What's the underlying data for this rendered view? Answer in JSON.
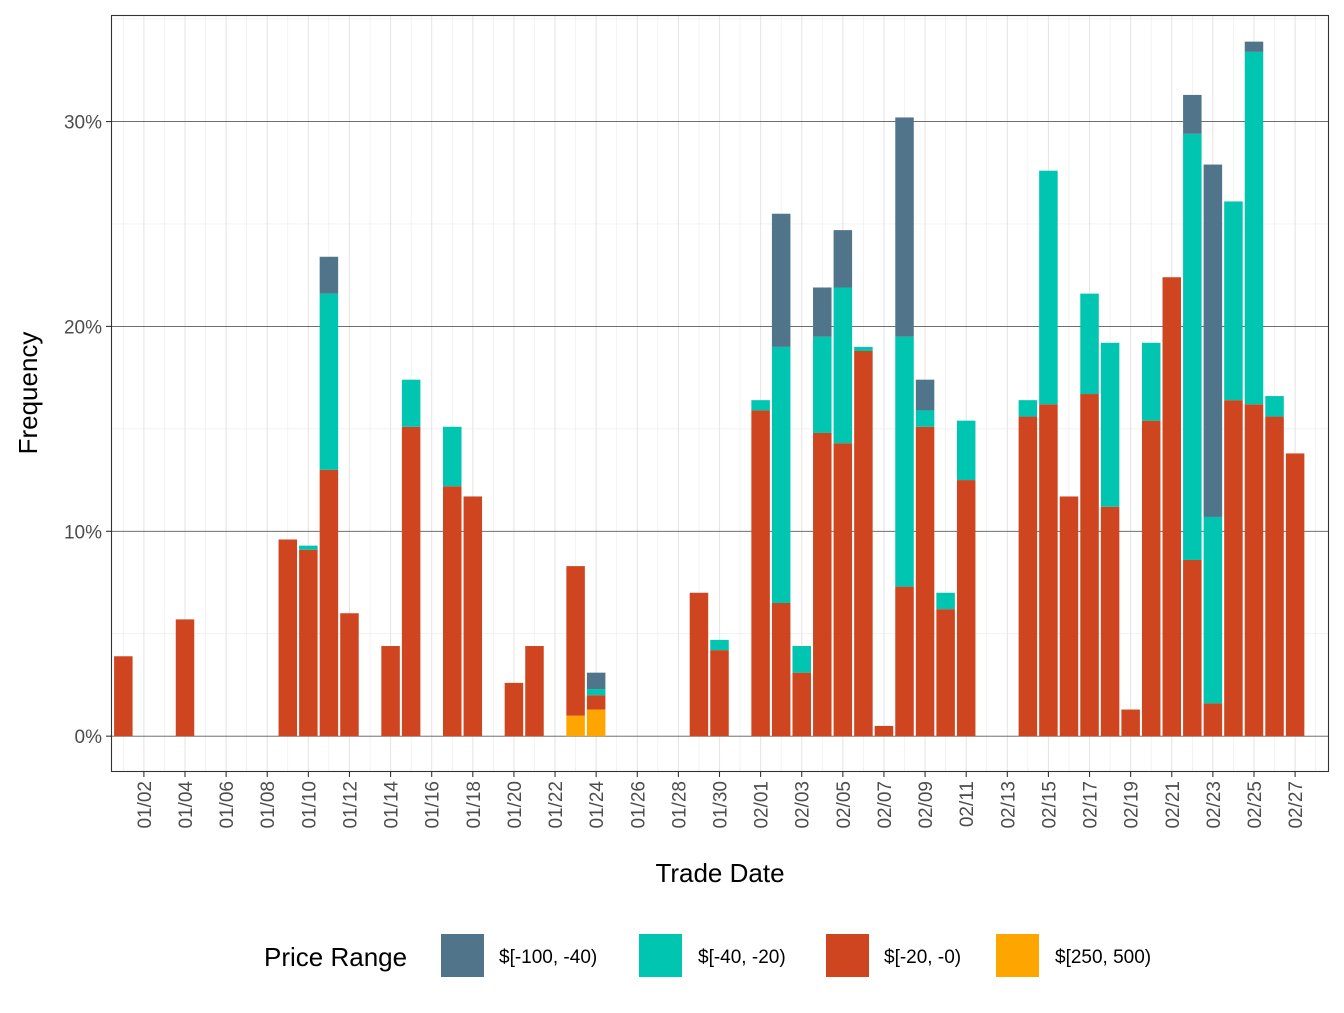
{
  "chart_data": {
    "type": "bar",
    "stacked": true,
    "xlabel": "Trade Date",
    "ylabel": "Frequency",
    "ylim": [
      -0.017,
      0.352
    ],
    "y_ticks": [
      0,
      0.1,
      0.2,
      0.3
    ],
    "y_tick_labels": [
      "0%",
      "10%",
      "20%",
      "30%"
    ],
    "x_domain": [
      "01/01",
      "02/28"
    ],
    "x_ticks": [
      "01/02",
      "01/04",
      "01/06",
      "01/08",
      "01/10",
      "01/12",
      "01/14",
      "01/16",
      "01/18",
      "01/20",
      "01/22",
      "01/24",
      "01/26",
      "01/28",
      "01/30",
      "02/01",
      "02/03",
      "02/05",
      "02/07",
      "02/09",
      "02/11",
      "02/13",
      "02/15",
      "02/17",
      "02/19",
      "02/21",
      "02/23",
      "02/25",
      "02/27"
    ],
    "grid": true,
    "legend": {
      "title": "Price Range",
      "position": "bottom",
      "entries": [
        {
          "label": "$[-100, -40)",
          "color": "#50758a"
        },
        {
          "label": "$[-40, -20)",
          "color": "#00c5b0"
        },
        {
          "label": "$[-20, -0)",
          "color": "#cf4520"
        },
        {
          "label": "$[250, 500)",
          "color": "#ffa500"
        }
      ]
    },
    "stack_order_bottom_to_top": [
      "$[250, 500)",
      "$[-20, -0)",
      "$[-40, -20)",
      "$[-100, -40)"
    ],
    "bars": [
      {
        "date": "01/01",
        "values": {
          "$[-20, -0)": 0.039
        }
      },
      {
        "date": "01/04",
        "values": {
          "$[-20, -0)": 0.057
        }
      },
      {
        "date": "01/09",
        "values": {
          "$[-20, -0)": 0.096
        }
      },
      {
        "date": "01/10",
        "values": {
          "$[-20, -0)": 0.091,
          "$[-40, -20)": 0.002
        }
      },
      {
        "date": "01/11",
        "values": {
          "$[-20, -0)": 0.13,
          "$[-40, -20)": 0.086,
          "$[-100, -40)": 0.018
        }
      },
      {
        "date": "01/12",
        "values": {
          "$[-20, -0)": 0.06
        }
      },
      {
        "date": "01/14",
        "values": {
          "$[-20, -0)": 0.044
        }
      },
      {
        "date": "01/15",
        "values": {
          "$[-20, -0)": 0.151,
          "$[-40, -20)": 0.023
        }
      },
      {
        "date": "01/17",
        "values": {
          "$[-20, -0)": 0.122,
          "$[-40, -20)": 0.029
        }
      },
      {
        "date": "01/18",
        "values": {
          "$[-20, -0)": 0.117
        }
      },
      {
        "date": "01/20",
        "values": {
          "$[-20, -0)": 0.026
        }
      },
      {
        "date": "01/21",
        "values": {
          "$[-20, -0)": 0.044
        }
      },
      {
        "date": "01/23",
        "values": {
          "$[250, 500)": 0.01,
          "$[-20, -0)": 0.073
        }
      },
      {
        "date": "01/24",
        "values": {
          "$[250, 500)": 0.013,
          "$[-20, -0)": 0.007,
          "$[-40, -20)": 0.003,
          "$[-100, -40)": 0.008
        }
      },
      {
        "date": "01/29",
        "values": {
          "$[-20, -0)": 0.07
        }
      },
      {
        "date": "01/30",
        "values": {
          "$[-20, -0)": 0.042,
          "$[-40, -20)": 0.005
        }
      },
      {
        "date": "02/01",
        "values": {
          "$[-20, -0)": 0.159,
          "$[-40, -20)": 0.005
        }
      },
      {
        "date": "02/02",
        "values": {
          "$[-20, -0)": 0.065,
          "$[-40, -20)": 0.125,
          "$[-100, -40)": 0.065
        }
      },
      {
        "date": "02/03",
        "values": {
          "$[-20, -0)": 0.031,
          "$[-40, -20)": 0.013
        }
      },
      {
        "date": "02/04",
        "values": {
          "$[-20, -0)": 0.148,
          "$[-40, -20)": 0.047,
          "$[-100, -40)": 0.024
        }
      },
      {
        "date": "02/05",
        "values": {
          "$[-20, -0)": 0.143,
          "$[-40, -20)": 0.076,
          "$[-100, -40)": 0.028
        }
      },
      {
        "date": "02/06",
        "values": {
          "$[-20, -0)": 0.188,
          "$[-40, -20)": 0.002
        }
      },
      {
        "date": "02/07",
        "values": {
          "$[-20, -0)": 0.005
        }
      },
      {
        "date": "02/08",
        "values": {
          "$[-20, -0)": 0.073,
          "$[-40, -20)": 0.122,
          "$[-100, -40)": 0.107
        }
      },
      {
        "date": "02/09",
        "values": {
          "$[-20, -0)": 0.151,
          "$[-40, -20)": 0.008,
          "$[-100, -40)": 0.015
        }
      },
      {
        "date": "02/10",
        "values": {
          "$[-20, -0)": 0.062,
          "$[-40, -20)": 0.008
        }
      },
      {
        "date": "02/11",
        "values": {
          "$[-20, -0)": 0.125,
          "$[-40, -20)": 0.029
        }
      },
      {
        "date": "02/14",
        "values": {
          "$[-20, -0)": 0.156,
          "$[-40, -20)": 0.008
        }
      },
      {
        "date": "02/15",
        "values": {
          "$[-20, -0)": 0.162,
          "$[-40, -20)": 0.114
        }
      },
      {
        "date": "02/16",
        "values": {
          "$[-20, -0)": 0.117
        }
      },
      {
        "date": "02/17",
        "values": {
          "$[-20, -0)": 0.167,
          "$[-40, -20)": 0.049
        }
      },
      {
        "date": "02/18",
        "values": {
          "$[-20, -0)": 0.112,
          "$[-40, -20)": 0.08
        }
      },
      {
        "date": "02/19",
        "values": {
          "$[-20, -0)": 0.013
        }
      },
      {
        "date": "02/20",
        "values": {
          "$[-20, -0)": 0.154,
          "$[-40, -20)": 0.038
        }
      },
      {
        "date": "02/21",
        "values": {
          "$[-20, -0)": 0.224
        }
      },
      {
        "date": "02/22",
        "values": {
          "$[-20, -0)": 0.086,
          "$[-40, -20)": 0.208,
          "$[-100, -40)": 0.019
        }
      },
      {
        "date": "02/23",
        "values": {
          "$[-20, -0)": 0.016,
          "$[-40, -20)": 0.091,
          "$[-100, -40)": 0.172
        }
      },
      {
        "date": "02/24",
        "values": {
          "$[-20, -0)": 0.164,
          "$[-40, -20)": 0.097
        }
      },
      {
        "date": "02/25",
        "values": {
          "$[-20, -0)": 0.162,
          "$[-40, -20)": 0.172,
          "$[-100, -40)": 0.005
        }
      },
      {
        "date": "02/26",
        "values": {
          "$[-20, -0)": 0.156,
          "$[-40, -20)": 0.01
        }
      },
      {
        "date": "02/27",
        "values": {
          "$[-20, -0)": 0.138
        }
      }
    ]
  }
}
